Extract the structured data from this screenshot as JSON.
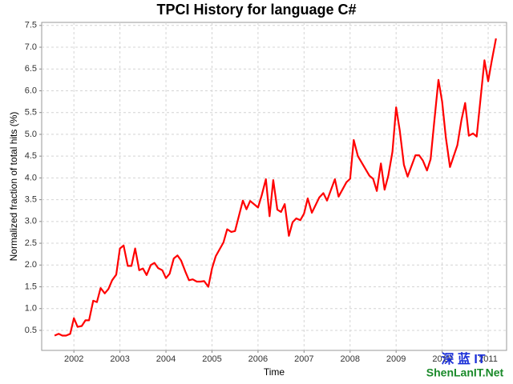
{
  "chart_data": {
    "type": "line",
    "title": "TPCI History for language C#",
    "x_label": "Time",
    "y_label": "Normalized fraction of total hits (%)",
    "watermark": [
      "深 蓝 IT",
      "ShenLanIT.Net"
    ],
    "color": "#ff0000",
    "grid": true,
    "xlim": [
      2001.3,
      2011.4
    ],
    "ylim": [
      0.04,
      7.57
    ],
    "xticks": [
      2002,
      2003,
      2004,
      2005,
      2006,
      2007,
      2008,
      2009,
      2010,
      2011
    ],
    "yticks": [
      0.5,
      {
        "value": 1,
        "label": "1.0"
      },
      1.5,
      {
        "value": 2,
        "label": "2.0"
      },
      2.5,
      {
        "value": 3,
        "label": "3.0"
      },
      3.5,
      {
        "value": 4,
        "label": "4.0"
      },
      4.5,
      {
        "value": 5,
        "label": "5.0"
      },
      5.5,
      {
        "value": 6,
        "label": "6.0"
      },
      6.5,
      {
        "value": 7,
        "label": "7.0"
      },
      7.5
    ],
    "x": [
      2001.58,
      2001.67,
      2001.75,
      2001.83,
      2001.92,
      2002.0,
      2002.08,
      2002.17,
      2002.25,
      2002.33,
      2002.42,
      2002.5,
      2002.58,
      2002.67,
      2002.75,
      2002.83,
      2002.92,
      2003.0,
      2003.08,
      2003.17,
      2003.25,
      2003.33,
      2003.42,
      2003.5,
      2003.58,
      2003.67,
      2003.75,
      2003.83,
      2003.92,
      2004.0,
      2004.08,
      2004.17,
      2004.25,
      2004.33,
      2004.42,
      2004.5,
      2004.58,
      2004.67,
      2004.75,
      2004.83,
      2004.92,
      2005.0,
      2005.08,
      2005.25,
      2005.33,
      2005.42,
      2005.5,
      2005.67,
      2005.75,
      2005.83,
      2006.0,
      2006.08,
      2006.17,
      2006.25,
      2006.33,
      2006.42,
      2006.5,
      2006.58,
      2006.67,
      2006.75,
      2006.83,
      2006.92,
      2007.0,
      2007.08,
      2007.17,
      2007.33,
      2007.42,
      2007.5,
      2007.67,
      2007.75,
      2007.92,
      2008.0,
      2008.08,
      2008.17,
      2008.42,
      2008.5,
      2008.58,
      2008.67,
      2008.75,
      2008.83,
      2008.92,
      2009.0,
      2009.08,
      2009.17,
      2009.25,
      2009.42,
      2009.5,
      2009.58,
      2009.67,
      2009.75,
      2009.83,
      2009.92,
      2010.0,
      2010.08,
      2010.17,
      2010.33,
      2010.42,
      2010.5,
      2010.58,
      2010.67,
      2010.75,
      2010.83,
      2010.92,
      2011.0,
      2011.08,
      2011.17
    ],
    "values": [
      0.38,
      0.42,
      0.38,
      0.38,
      0.42,
      0.78,
      0.58,
      0.6,
      0.73,
      0.73,
      1.18,
      1.15,
      1.47,
      1.35,
      1.45,
      1.65,
      1.78,
      2.38,
      2.45,
      1.98,
      1.98,
      2.38,
      1.88,
      1.92,
      1.77,
      2.0,
      2.05,
      1.93,
      1.88,
      1.7,
      1.8,
      2.15,
      2.22,
      2.1,
      1.85,
      1.65,
      1.67,
      1.62,
      1.62,
      1.63,
      1.5,
      1.92,
      2.2,
      2.52,
      2.82,
      2.76,
      2.78,
      3.48,
      3.28,
      3.47,
      3.32,
      3.6,
      3.97,
      3.12,
      3.95,
      3.27,
      3.22,
      3.4,
      2.67,
      2.98,
      3.07,
      3.03,
      3.18,
      3.53,
      3.2,
      3.55,
      3.65,
      3.48,
      3.97,
      3.57,
      3.9,
      3.98,
      4.87,
      4.5,
      4.05,
      3.98,
      3.7,
      4.33,
      3.73,
      4.05,
      4.6,
      5.62,
      5.08,
      4.3,
      4.03,
      4.52,
      4.52,
      4.4,
      4.17,
      4.43,
      5.3,
      6.25,
      5.75,
      4.93,
      4.25,
      4.75,
      5.33,
      5.72,
      4.97,
      5.02,
      4.95,
      5.78,
      6.7,
      6.22,
      6.7,
      7.2
    ]
  }
}
